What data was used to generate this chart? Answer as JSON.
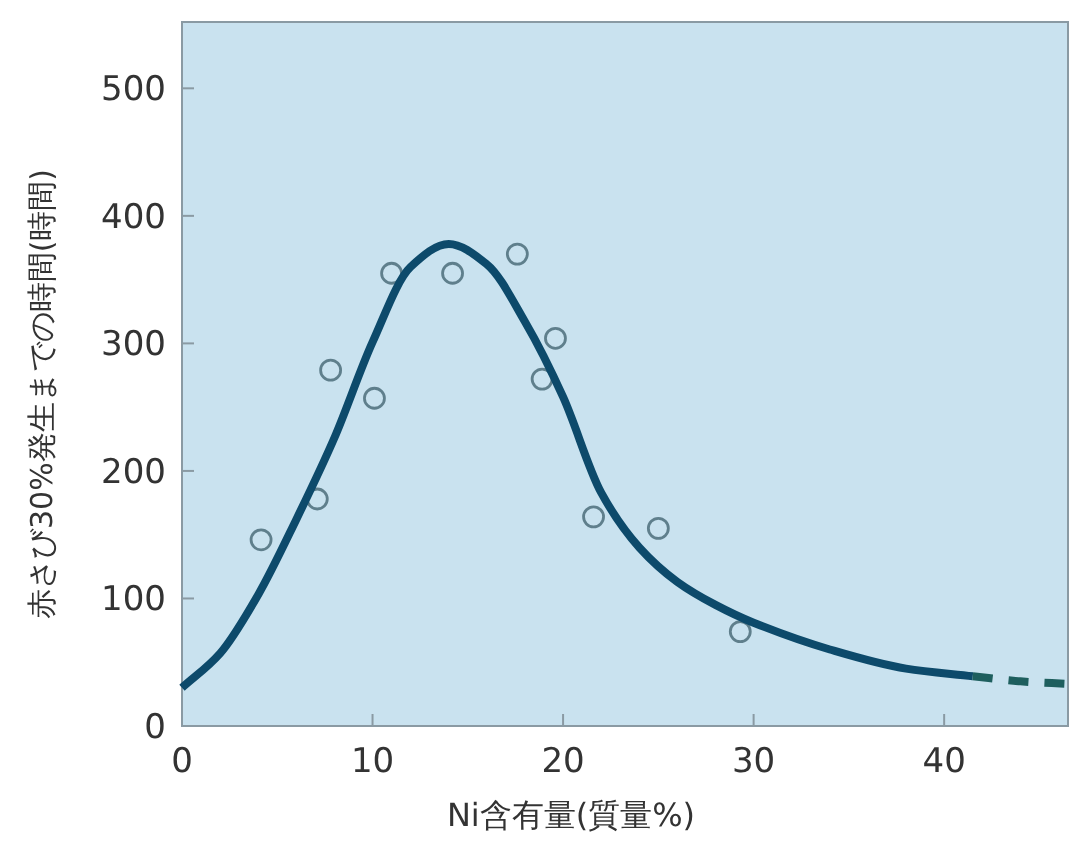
{
  "chart_data": {
    "type": "scatter",
    "xlabel": "Ni含有量(質量%)",
    "ylabel": "赤さび30%発生までの時間(時間)",
    "xlim": [
      0,
      46.5
    ],
    "ylim": [
      0,
      552
    ],
    "xticks": [
      0,
      10,
      20,
      30,
      40
    ],
    "yticks": [
      0,
      100,
      200,
      300,
      400,
      500
    ],
    "grid": false,
    "series": [
      {
        "marker": "circle",
        "color": "#5f7f8c",
        "x": [
          4.15,
          7.1,
          7.8,
          10.1,
          11.0,
          14.2,
          17.6,
          18.9,
          19.6,
          21.6,
          25.0,
          29.3
        ],
        "values": [
          146,
          178,
          279,
          257,
          355,
          355,
          370,
          272,
          304,
          164,
          155,
          74
        ]
      },
      {
        "type": "line",
        "line_style": "solid",
        "color": "#0d4a6b",
        "x": [
          0,
          2,
          4,
          6,
          8,
          10,
          12,
          14,
          16,
          18,
          20,
          22,
          24,
          26,
          28,
          30,
          34,
          38,
          41.5
        ],
        "values": [
          30,
          57,
          103,
          162,
          226,
          301,
          360,
          378,
          362,
          317,
          258,
          183,
          140,
          113,
          95,
          81,
          60,
          45,
          39
        ]
      },
      {
        "type": "line",
        "line_style": "dashed",
        "color": "#1e5f5e",
        "x": [
          41.5,
          44,
          46.5
        ],
        "values": [
          39,
          35,
          33
        ]
      }
    ]
  }
}
